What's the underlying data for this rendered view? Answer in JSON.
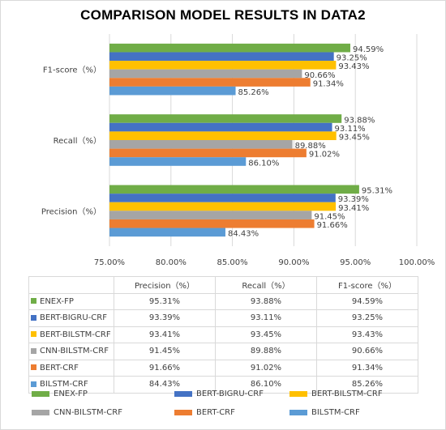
{
  "chart_data": {
    "type": "bar",
    "orientation": "horizontal",
    "title": "COMPARISON MODEL RESULTS IN DATA2",
    "categories": [
      "F1-score（%）",
      "Recall（%）",
      "Precision（%）"
    ],
    "table_headers": [
      "Precision（%）",
      "Recall（%）",
      "F1-score（%）"
    ],
    "series": [
      {
        "name": "ENEX-FP",
        "color": "#70ad47",
        "values": [
          94.59,
          93.88,
          95.31
        ],
        "labels": [
          "94.59%",
          "93.88%",
          "95.31%"
        ],
        "table": [
          "95.31%",
          "93.88%",
          "94.59%"
        ]
      },
      {
        "name": "BERT-BIGRU-CRF",
        "color": "#4472c4",
        "values": [
          93.25,
          93.11,
          93.39
        ],
        "labels": [
          "93.25%",
          "93.11%",
          "93.39%"
        ],
        "table": [
          "93.39%",
          "93.11%",
          "93.25%"
        ]
      },
      {
        "name": "BERT-BILSTM-CRF",
        "color": "#ffc000",
        "values": [
          93.43,
          93.45,
          93.41
        ],
        "labels": [
          "93.43%",
          "93.45%",
          "93.41%"
        ],
        "table": [
          "93.41%",
          "93.45%",
          "93.43%"
        ]
      },
      {
        "name": "CNN-BILSTM-CRF",
        "color": "#a5a5a5",
        "values": [
          90.66,
          89.88,
          91.45
        ],
        "labels": [
          "90.66%",
          "89.88%",
          "91.45%"
        ],
        "table": [
          "91.45%",
          "89.88%",
          "90.66%"
        ]
      },
      {
        "name": "BERT-CRF",
        "color": "#ed7d31",
        "values": [
          91.34,
          91.02,
          91.66
        ],
        "labels": [
          "91.34%",
          "91.02%",
          "91.66%"
        ],
        "table": [
          "91.66%",
          "91.02%",
          "91.34%"
        ]
      },
      {
        "name": "BILSTM-CRF",
        "color": "#5b9bd5",
        "values": [
          85.26,
          86.1,
          84.43
        ],
        "labels": [
          "85.26%",
          "86.10%",
          "84.43%"
        ],
        "table": [
          "84.43%",
          "86.10%",
          "85.26%"
        ]
      }
    ],
    "xlim": [
      75,
      100
    ],
    "xticks": [
      "75.00%",
      "80.00%",
      "85.00%",
      "90.00%",
      "95.00%",
      "100.00%"
    ],
    "grid": true,
    "legend_placement": "bottom"
  }
}
